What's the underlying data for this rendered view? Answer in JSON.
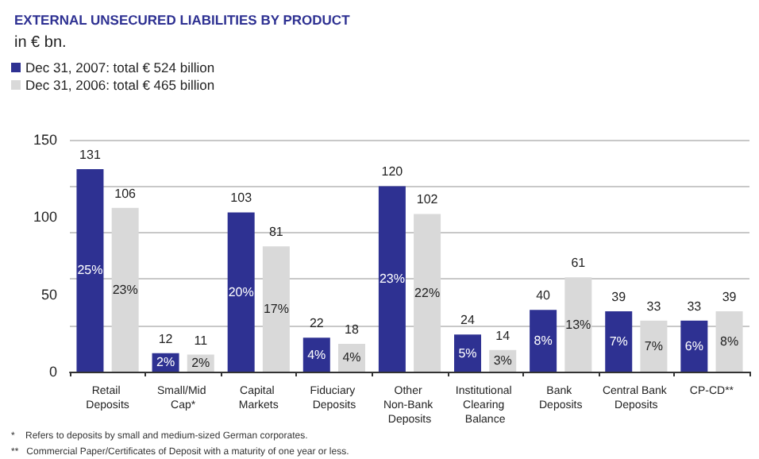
{
  "chart_data": {
    "type": "bar",
    "title": "EXTERNAL UNSECURED LIABILITIES BY PRODUCT",
    "subtitle": "in € bn.",
    "categories": [
      "Retail Deposits",
      "Small/Mid Cap*",
      "Capital Markets",
      "Fiduciary Deposits",
      "Other Non-Bank Deposits",
      "Institutional Clearing Balance",
      "Bank Deposits",
      "Central Bank Deposits",
      "CP-CD**"
    ],
    "series": [
      {
        "name": "Dec 31, 2007: total € 524 billion",
        "color": "#2e3192",
        "values": [
          131,
          12,
          103,
          22,
          120,
          24,
          40,
          39,
          33
        ]
      },
      {
        "name": "Dec 31, 2006: total € 465 billion",
        "color": "#d9d9d9",
        "values": [
          106,
          11,
          81,
          18,
          102,
          14,
          61,
          33,
          39
        ]
      }
    ],
    "ylim": [
      0,
      150
    ],
    "yticks": [
      0,
      50,
      100,
      150
    ],
    "grid": "y",
    "legend": "top left",
    "data_labels": true,
    "annotations": [
      {
        "text": "25%",
        "x": "Retail Deposits",
        "y": 65.5
      },
      {
        "text": "23%",
        "x": "Retail Deposits",
        "y": 53
      },
      {
        "text": "2%",
        "x": "Small/Mid Cap*",
        "y": 6
      },
      {
        "text": "2%",
        "x": "Small/Mid Cap*",
        "y": 5.5
      },
      {
        "text": "20%",
        "x": "Capital Markets",
        "y": 51.5
      },
      {
        "text": "17%",
        "x": "Capital Markets",
        "y": 40.5
      },
      {
        "text": "4%",
        "x": "Fiduciary Deposits",
        "y": 11
      },
      {
        "text": "4%",
        "x": "Fiduciary Deposits",
        "y": 9
      },
      {
        "text": "23%",
        "x": "Other Non-Bank Deposits",
        "y": 60
      },
      {
        "text": "22%",
        "x": "Other Non-Bank Deposits",
        "y": 51
      },
      {
        "text": "5%",
        "x": "Institutional Clearing Balance",
        "y": 12
      },
      {
        "text": "3%",
        "x": "Institutional Clearing Balance",
        "y": 7
      },
      {
        "text": "8%",
        "x": "Bank Deposits",
        "y": 20
      },
      {
        "text": "13%",
        "x": "Bank Deposits",
        "y": 30.5
      },
      {
        "text": "7%",
        "x": "Central Bank Deposits",
        "y": 19.5
      },
      {
        "text": "7%",
        "x": "Central Bank Deposits",
        "y": 16.5
      },
      {
        "text": "6%",
        "x": "CP-CD**",
        "y": 16.5
      },
      {
        "text": "8%",
        "x": "CP-CD**",
        "y": 19.5
      },
      "*    Refers to deposits by small and medium-sized German corporates.",
      "**   Commercial Paper/Certificates of Deposit with a maturity of one year or less."
    ]
  }
}
